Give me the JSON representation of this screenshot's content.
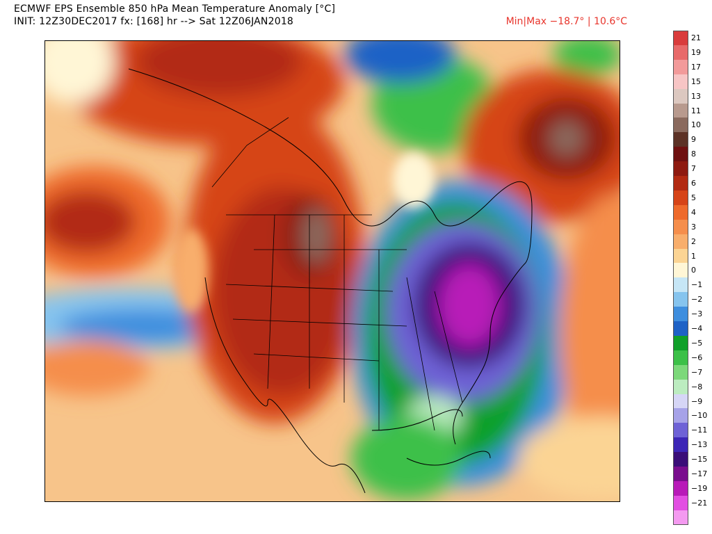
{
  "header": {
    "title_line_1": "ECMWF EPS Ensemble 850 hPa Mean Temperature Anomaly [°C]",
    "title_line_2": "INIT: 12Z30DEC2017 fx: [168] hr --> Sat 12Z06JAN2018",
    "minmax": "Min|Max −18.7° | 10.6°C"
  },
  "colors": {
    "title": "#000000",
    "minmax": "#e8352c"
  },
  "colorbar": [
    {
      "label": "21",
      "color": "#d93c3c"
    },
    {
      "label": "19",
      "color": "#e86a6a"
    },
    {
      "label": "17",
      "color": "#f29a9a"
    },
    {
      "label": "15",
      "color": "#f7c5c5"
    },
    {
      "label": "13",
      "color": "#dcc8c0"
    },
    {
      "label": "11",
      "color": "#b89a8e"
    },
    {
      "label": "10",
      "color": "#8a6a5e"
    },
    {
      "label": "9",
      "color": "#5c3226"
    },
    {
      "label": "8",
      "color": "#6e1010"
    },
    {
      "label": "7",
      "color": "#8e1a10"
    },
    {
      "label": "6",
      "color": "#b22a12"
    },
    {
      "label": "5",
      "color": "#d64418"
    },
    {
      "label": "4",
      "color": "#ee6a2c"
    },
    {
      "label": "3",
      "color": "#f58e4c"
    },
    {
      "label": "2",
      "color": "#f8ae6c"
    },
    {
      "label": "1",
      "color": "#fbd494"
    },
    {
      "label": "0",
      "color": "#fff6d6"
    },
    {
      "label": "−1",
      "color": "#c6e6f6"
    },
    {
      "label": "−2",
      "color": "#86c4ee"
    },
    {
      "label": "−3",
      "color": "#3e8ede"
    },
    {
      "label": "−4",
      "color": "#1e62c6"
    },
    {
      "label": "−5",
      "color": "#10a02a"
    },
    {
      "label": "−6",
      "color": "#3cc048"
    },
    {
      "label": "−7",
      "color": "#7cd87a"
    },
    {
      "label": "−8",
      "color": "#bcecc0"
    },
    {
      "label": "−9",
      "color": "#d6d6f6"
    },
    {
      "label": "−10",
      "color": "#a6a2e8"
    },
    {
      "label": "−11",
      "color": "#6e62d6"
    },
    {
      "label": "−13",
      "color": "#3c26b6"
    },
    {
      "label": "−15",
      "color": "#3a0e78"
    },
    {
      "label": "−17",
      "color": "#7a0e8e"
    },
    {
      "label": "−19",
      "color": "#b81ab8"
    },
    {
      "label": "−21",
      "color": "#e24ee2"
    },
    {
      "label": "",
      "color": "#f49af0"
    }
  ]
}
